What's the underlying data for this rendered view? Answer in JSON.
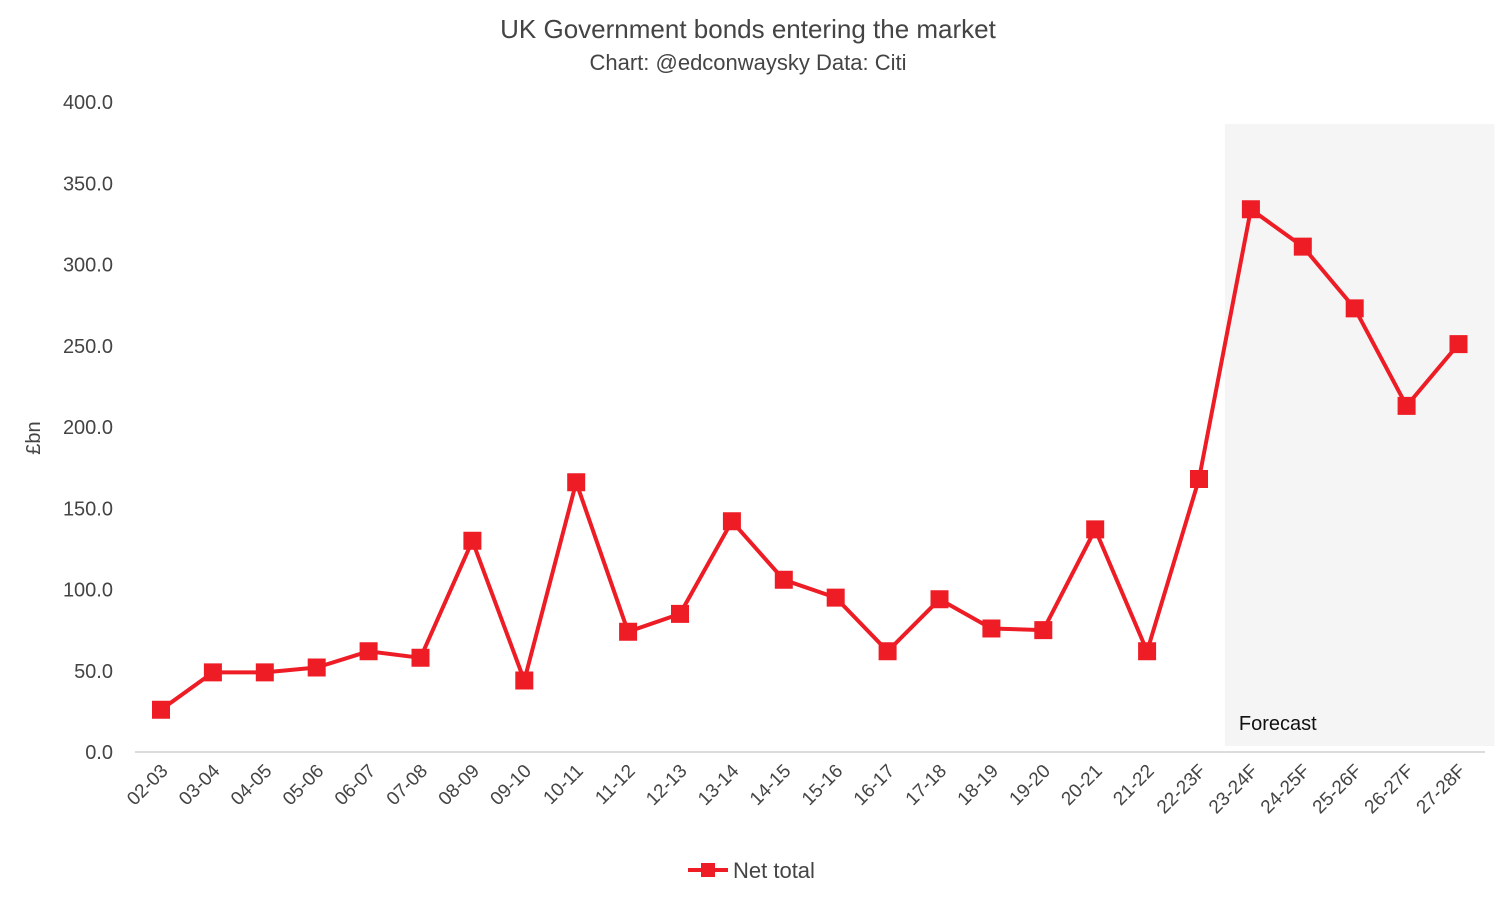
{
  "chart_data": {
    "type": "line",
    "title": "UK Government bonds entering the market",
    "subtitle": "Chart: @edconwaysky Data: Citi",
    "xlabel": "",
    "ylabel": "£bn",
    "ylim": [
      0,
      400
    ],
    "yticks": [
      "0.0",
      "50.0",
      "100.0",
      "150.0",
      "200.0",
      "250.0",
      "300.0",
      "350.0",
      "400.0"
    ],
    "grid": false,
    "legend_position": "bottom",
    "categories": [
      "02-03",
      "03-04",
      "04-05",
      "05-06",
      "06-07",
      "07-08",
      "08-09",
      "09-10",
      "10-11",
      "11-12",
      "12-13",
      "13-14",
      "14-15",
      "15-16",
      "16-17",
      "17-18",
      "18-19",
      "19-20",
      "20-21",
      "21-22",
      "22-23F",
      "23-24F",
      "24-25F",
      "25-26F",
      "26-27F",
      "27-28F"
    ],
    "series": [
      {
        "name": "Net total",
        "color": "#ee1c25",
        "values": [
          26,
          49,
          49,
          52,
          62,
          58,
          130,
          44,
          166,
          74,
          85,
          142,
          106,
          95,
          62,
          94,
          76,
          75,
          137,
          62,
          168,
          334,
          311,
          273,
          213,
          251
        ]
      }
    ],
    "annotation": {
      "label": "Forecast",
      "from_category": "23-24F",
      "to_category": "27-28F",
      "shade_color": "#f5f5f5"
    }
  }
}
